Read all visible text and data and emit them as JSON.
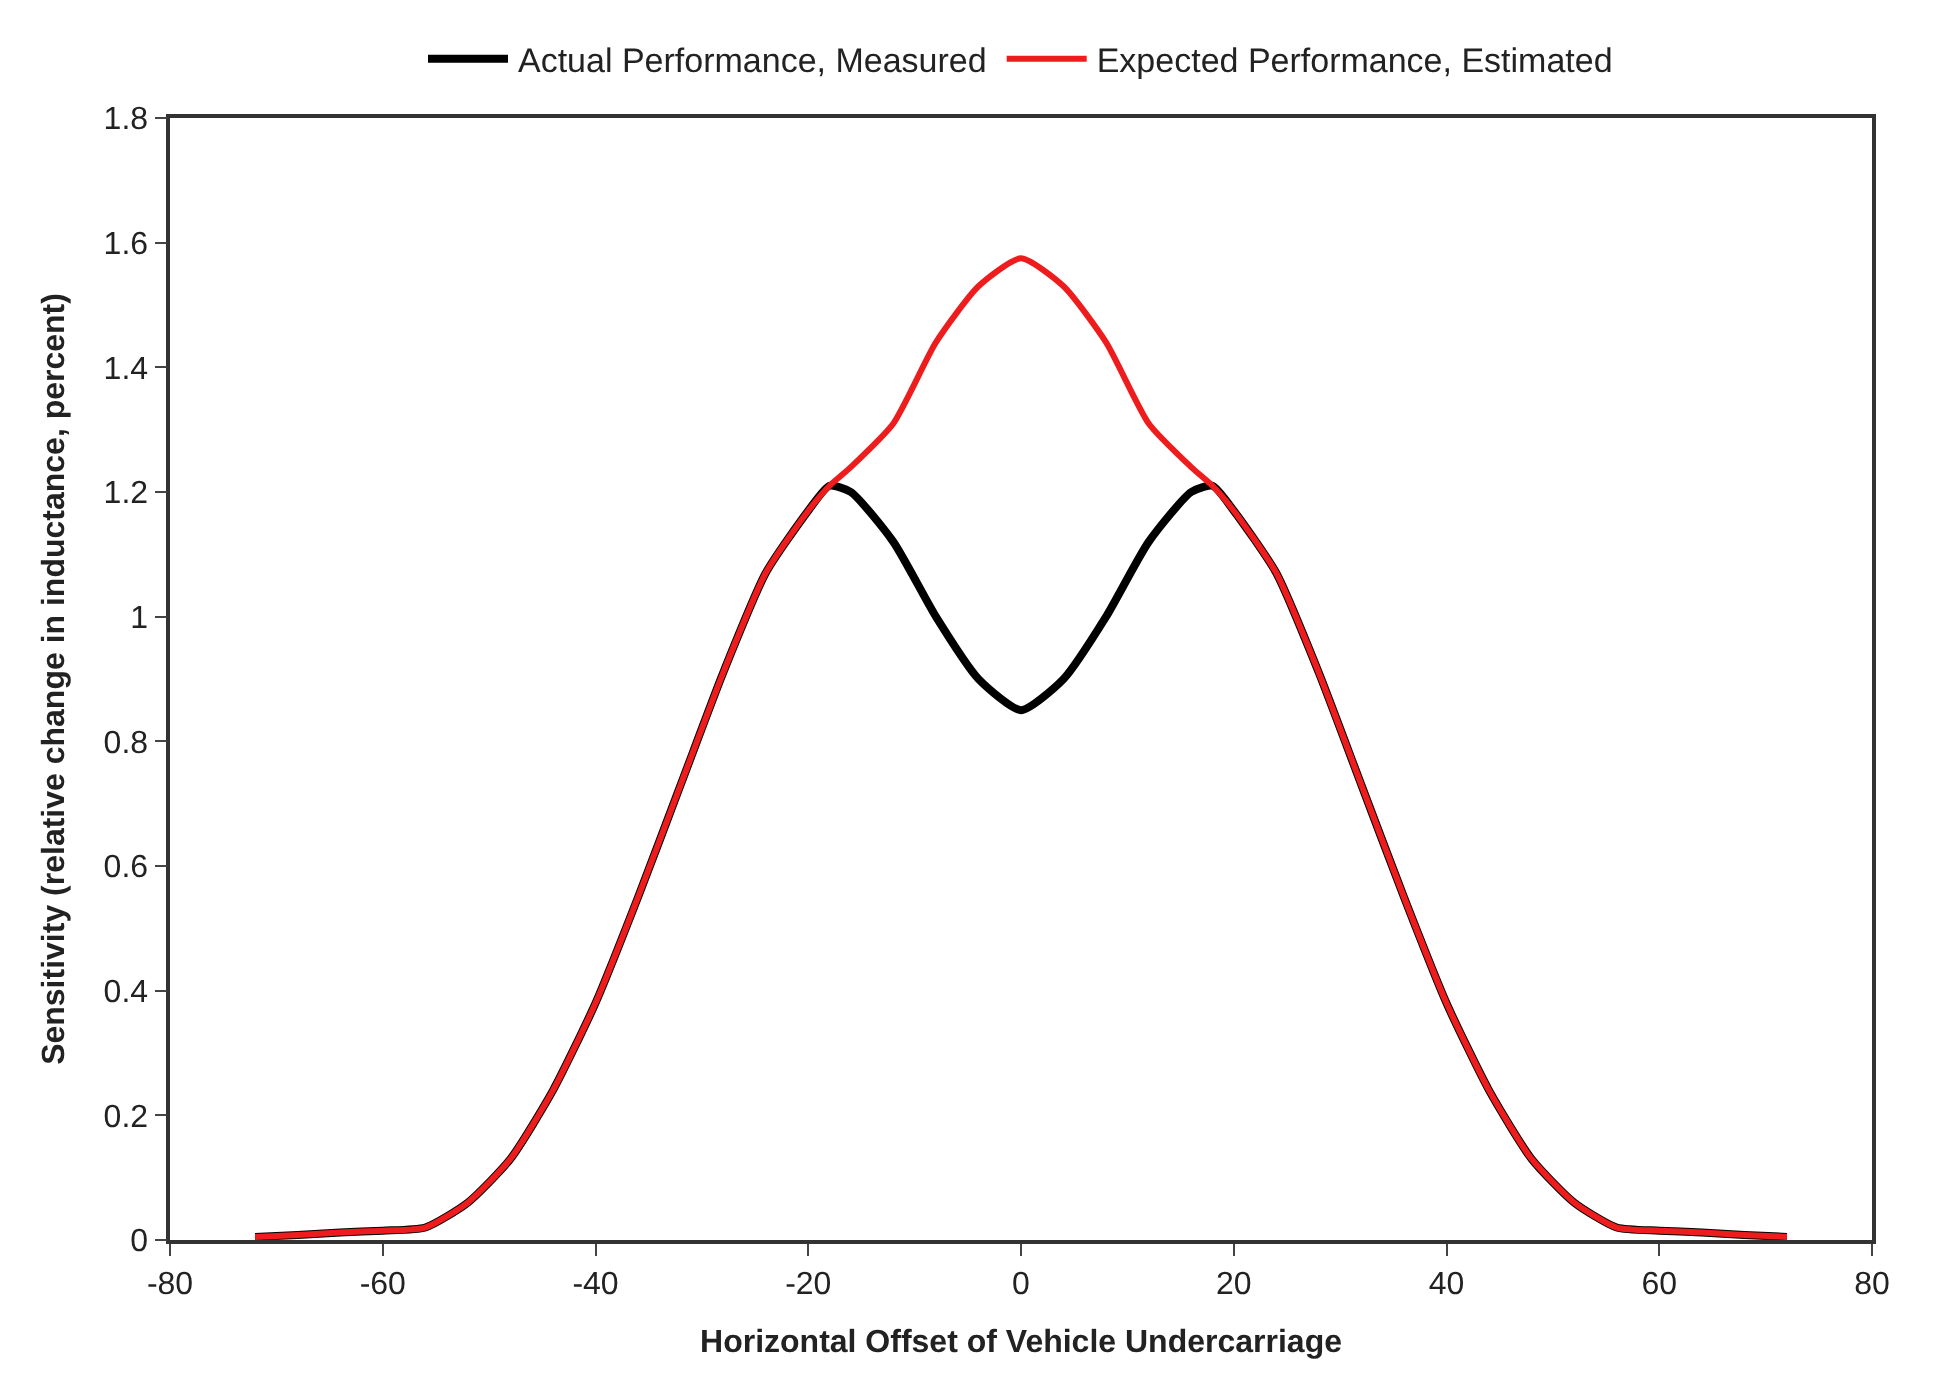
{
  "chart_data": {
    "type": "line",
    "xlabel": "Horizontal Offset of Vehicle Undercarriage",
    "ylabel": "Sensitivity (relative change in inductance, percent)",
    "x": [
      -72,
      -68,
      -64,
      -60,
      -56,
      -52,
      -48,
      -44,
      -40,
      -36,
      -32,
      -28,
      -24,
      -20,
      -18,
      -16,
      -12,
      -8,
      -4,
      0,
      4,
      8,
      12,
      16,
      18,
      20,
      24,
      28,
      32,
      36,
      40,
      44,
      48,
      52,
      56,
      60,
      64,
      68,
      72
    ],
    "series": [
      {
        "name": "Actual Performance, Measured",
        "color": "#000000",
        "values": [
          0.005,
          0.008,
          0.012,
          0.015,
          0.02,
          0.06,
          0.13,
          0.24,
          0.38,
          0.55,
          0.73,
          0.91,
          1.07,
          1.17,
          1.21,
          1.2,
          1.12,
          1.0,
          0.9,
          0.85,
          0.9,
          1.0,
          1.12,
          1.2,
          1.21,
          1.17,
          1.07,
          0.91,
          0.73,
          0.55,
          0.38,
          0.24,
          0.13,
          0.06,
          0.02,
          0.015,
          0.012,
          0.008,
          0.005
        ]
      },
      {
        "name": "Expected Performance, Estimated",
        "color": "#ee1c1c",
        "values": [
          0.005,
          0.008,
          0.012,
          0.015,
          0.02,
          0.06,
          0.13,
          0.24,
          0.38,
          0.55,
          0.73,
          0.91,
          1.07,
          1.17,
          1.21,
          1.24,
          1.31,
          1.44,
          1.53,
          1.575,
          1.53,
          1.44,
          1.31,
          1.24,
          1.21,
          1.17,
          1.07,
          0.91,
          0.73,
          0.55,
          0.38,
          0.24,
          0.13,
          0.06,
          0.02,
          0.015,
          0.012,
          0.008,
          0.005
        ]
      }
    ],
    "xlim": [
      -80,
      80
    ],
    "xticks": [
      -80,
      -60,
      -40,
      -20,
      0,
      20,
      40,
      60,
      80
    ],
    "ylim": [
      0,
      1.8
    ],
    "yticks": [
      0,
      0.2,
      0.4,
      0.6,
      0.8,
      1,
      1.2,
      1.4,
      1.6,
      1.8
    ],
    "legend": "top",
    "marker": "none",
    "line_style": "solid"
  }
}
